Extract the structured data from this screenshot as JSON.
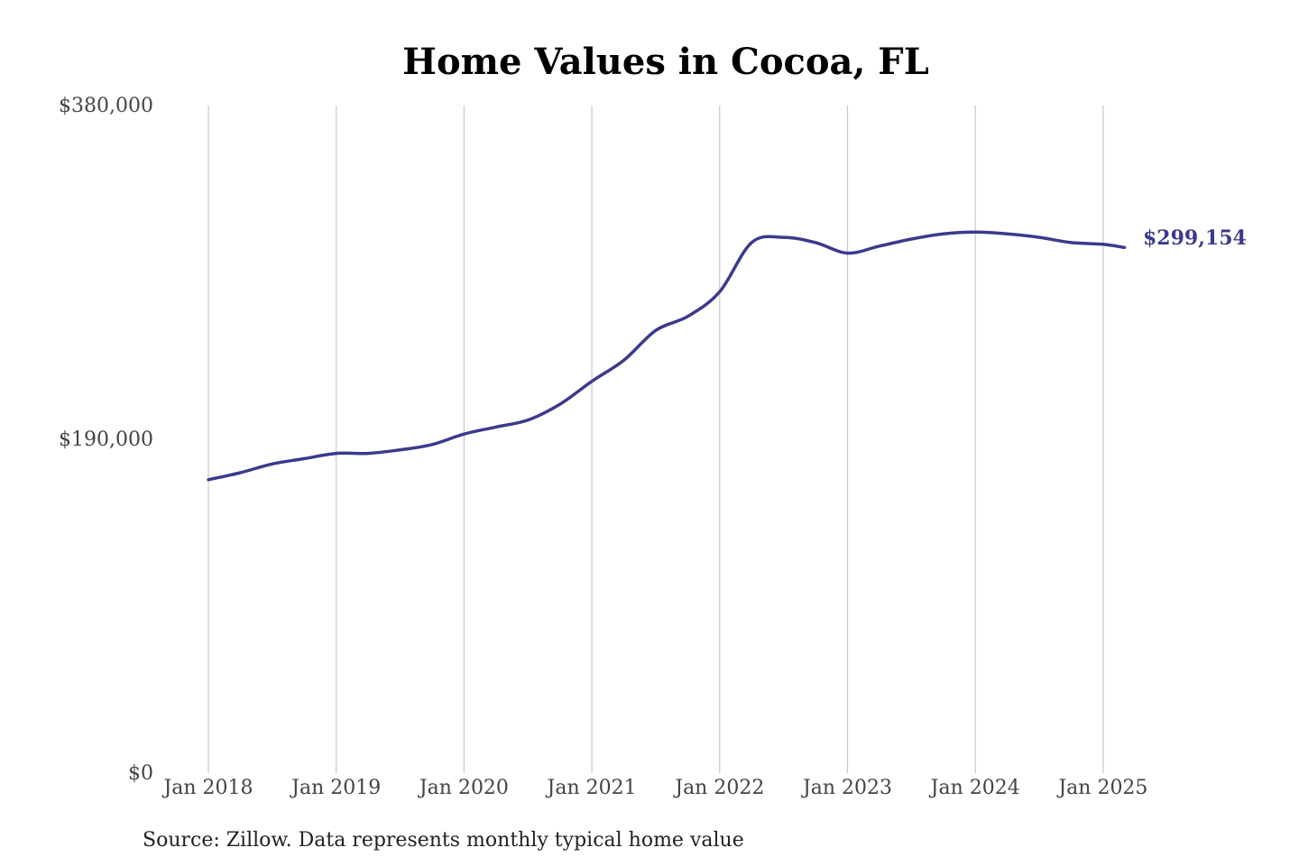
{
  "chart_data": {
    "type": "line",
    "title": "Home Values in Cocoa, FL",
    "xlabel": "",
    "ylabel": "",
    "ylim": [
      0,
      380000
    ],
    "y_ticks": [
      {
        "value": 0,
        "label": "$0"
      },
      {
        "value": 190000,
        "label": "$190,000"
      },
      {
        "value": 380000,
        "label": "$380,000"
      }
    ],
    "x_ticks": [
      {
        "value": "2018-01",
        "label": "Jan 2018"
      },
      {
        "value": "2019-01",
        "label": "Jan 2019"
      },
      {
        "value": "2020-01",
        "label": "Jan 2020"
      },
      {
        "value": "2021-01",
        "label": "Jan 2021"
      },
      {
        "value": "2022-01",
        "label": "Jan 2022"
      },
      {
        "value": "2023-01",
        "label": "Jan 2023"
      },
      {
        "value": "2024-01",
        "label": "Jan 2024"
      },
      {
        "value": "2025-01",
        "label": "Jan 2025"
      }
    ],
    "x_range": [
      "2018-01",
      "2025-03"
    ],
    "grid": "vertical",
    "color": "#3b3a8c",
    "end_label": "$299,154",
    "series": [
      {
        "x": [
          "2018-01",
          "2018-04",
          "2018-07",
          "2018-10",
          "2019-01",
          "2019-04",
          "2019-07",
          "2019-10",
          "2020-01",
          "2020-04",
          "2020-07",
          "2020-10",
          "2021-01",
          "2021-04",
          "2021-07",
          "2021-10",
          "2022-01",
          "2022-04",
          "2022-07",
          "2022-10",
          "2023-01",
          "2023-04",
          "2023-07",
          "2023-10",
          "2024-01",
          "2024-04",
          "2024-07",
          "2024-10",
          "2025-01",
          "2025-03"
        ],
        "values": [
          167000,
          171000,
          176000,
          179000,
          182000,
          182000,
          184000,
          187000,
          193000,
          197000,
          201000,
          210000,
          223000,
          235000,
          252000,
          260000,
          274000,
          302000,
          305000,
          302000,
          296000,
          300000,
          304000,
          307000,
          308000,
          307000,
          305000,
          302000,
          301000,
          299154
        ]
      }
    ]
  },
  "source_note": "Source: Zillow. Data represents monthly typical home value"
}
